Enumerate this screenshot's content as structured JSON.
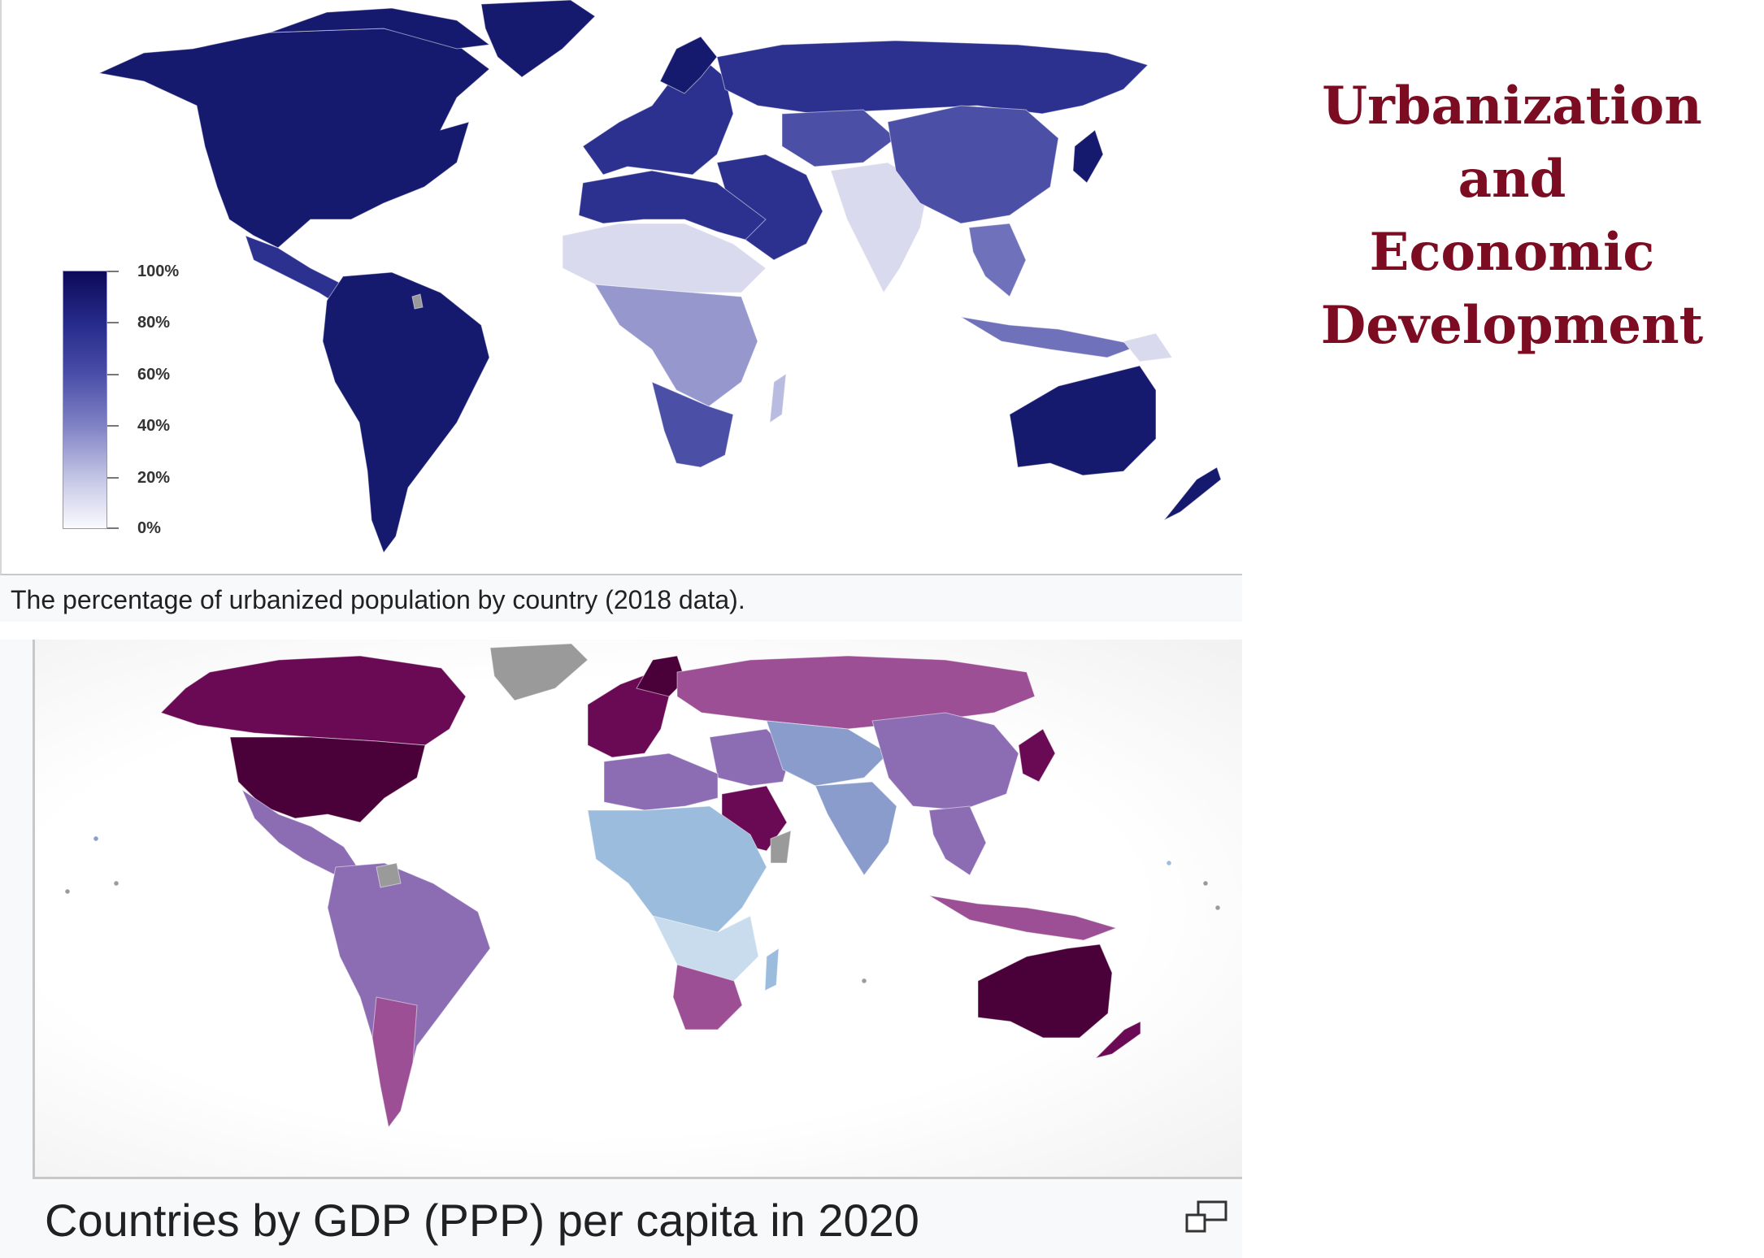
{
  "title": {
    "lines": [
      "Urbanization and",
      "Economic",
      "Development"
    ],
    "color": "#7b0c22"
  },
  "urban_map": {
    "caption": "The percentage of urbanized population by country (2018 data).",
    "legend": {
      "labels": [
        "100%",
        "80%",
        "60%",
        "40%",
        "20%",
        "0%"
      ],
      "colors": [
        "#0d0a59",
        "#262a8a",
        "#4a4ea8",
        "#7f82c4",
        "#c3c4e4",
        "#fafaff"
      ]
    },
    "colors": {
      "very_high": "#161a6e",
      "high": "#2c3190",
      "mid_high": "#4b4fa6",
      "mid": "#6f72ba",
      "mid_low": "#9597cd",
      "low": "#b9bbe0",
      "very_low": "#d9daee",
      "no_data": "#9a9a9a"
    }
  },
  "gdp_map": {
    "caption": "Countries by GDP (PPP) per capita in 2020",
    "enlarge_icon": "enlarge-icon",
    "colors": {
      "highest": "#4a0038",
      "very_high": "#6a0a55",
      "high": "#85227a",
      "mid_high": "#9c4f95",
      "mid": "#8c6db4",
      "mid_low": "#8a9ccc",
      "low": "#9bbcdd",
      "lowest": "#c8dcee",
      "no_data": "#9a9a9a"
    }
  }
}
